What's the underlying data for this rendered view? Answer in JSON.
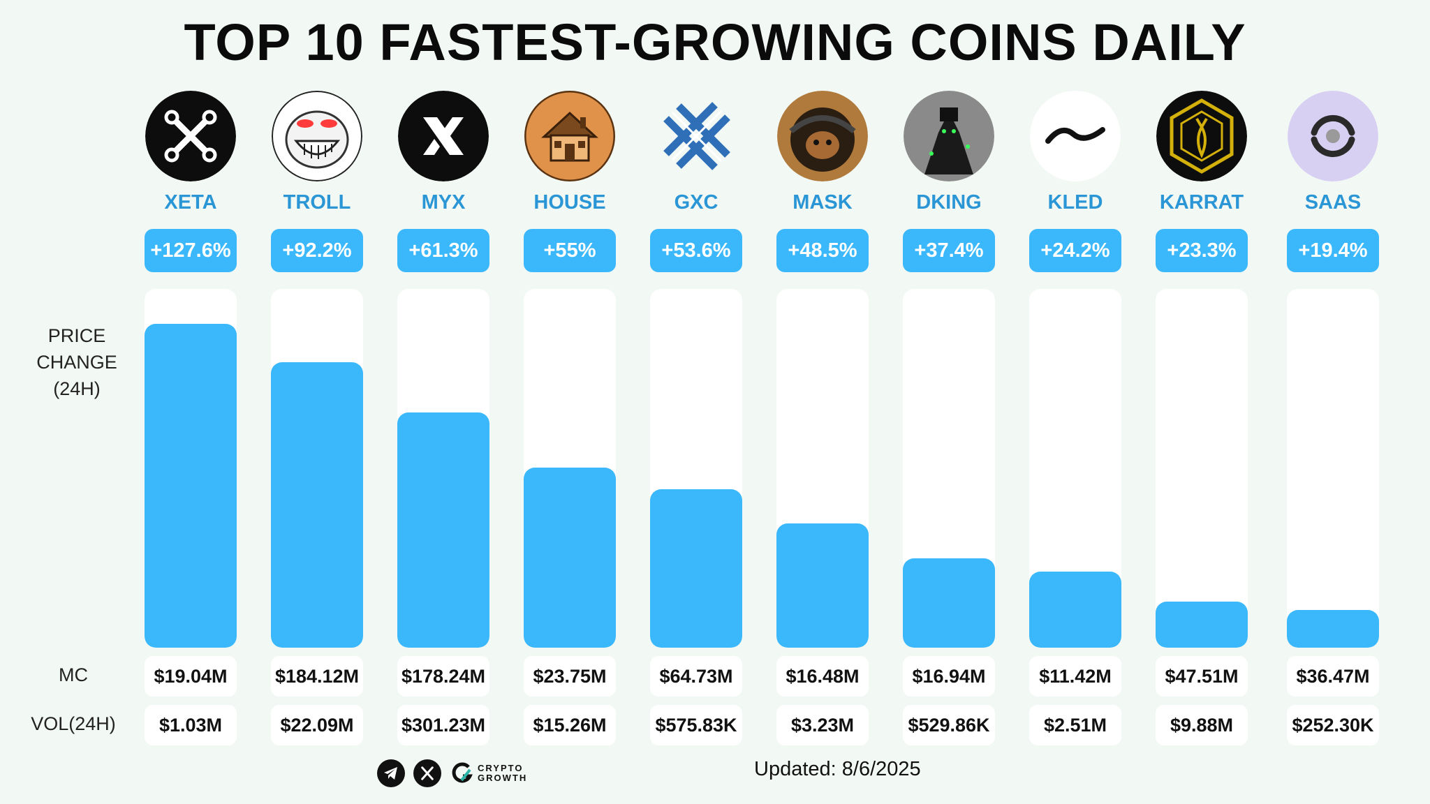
{
  "title": "TOP 10 FASTEST-GROWING COINS DAILY",
  "row_labels": {
    "price_change_1": "PRICE",
    "price_change_2": "CHANGE",
    "price_change_3": "(24H)",
    "mc": "MC",
    "vol": "VOL(24H)"
  },
  "footer": {
    "brand_line1": "CRYPTO",
    "brand_line2": "GROWTH",
    "updated": "Updated: 8/6/2025"
  },
  "colors": {
    "bar": "#3bb8fb",
    "name": "#2a96d6",
    "track": "#ffffff",
    "background": "#f2f8f4"
  },
  "chart_data": {
    "type": "bar",
    "title": "TOP 10 FASTEST-GROWING COINS DAILY",
    "ylabel": "PRICE CHANGE (24H)",
    "ylim": [
      0,
      140
    ],
    "grid": false,
    "categories": [
      "XETA",
      "TROLL",
      "MYX",
      "HOUSE",
      "GXC",
      "MASK",
      "DKING",
      "KLED",
      "KARRAT",
      "SAAS"
    ],
    "values": [
      127.6,
      92.2,
      61.3,
      55,
      53.6,
      48.5,
      37.4,
      24.2,
      23.3,
      19.4
    ],
    "value_labels": [
      "+127.6%",
      "+92.2%",
      "+61.3%",
      "+55%",
      "+53.6%",
      "+48.5%",
      "+37.4%",
      "+24.2%",
      "+23.3%",
      "+19.4%"
    ],
    "bar_fill": [
      0.902,
      0.796,
      0.656,
      0.502,
      0.442,
      0.346,
      0.249,
      0.212,
      0.128,
      0.105
    ],
    "mc": [
      "$19.04M",
      "$184.12M",
      "$178.24M",
      "$23.75M",
      "$64.73M",
      "$16.48M",
      "$16.94M",
      "$11.42M",
      "$47.51M",
      "$36.47M"
    ],
    "vol": [
      "$1.03M",
      "$22.09M",
      "$301.23M",
      "$15.26M",
      "$575.83K",
      "$3.23M",
      "$529.86K",
      "$2.51M",
      "$9.88M",
      "$252.30K"
    ],
    "logos": [
      "xeta-logo",
      "troll-face-logo",
      "myx-logo",
      "house-logo",
      "gxc-logo",
      "mask-logo",
      "dking-logo",
      "kled-logo",
      "karrat-logo",
      "saas-logo"
    ]
  }
}
